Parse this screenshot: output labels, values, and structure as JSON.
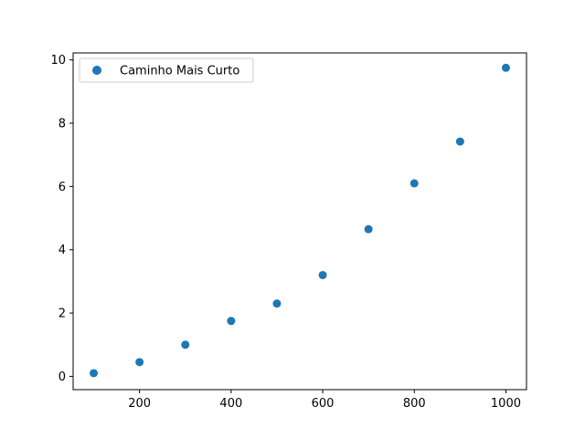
{
  "chart_data": {
    "type": "scatter",
    "title": "",
    "xlabel": "",
    "ylabel": "",
    "xlim": [
      55,
      1045
    ],
    "ylim": [
      -0.42,
      10.22
    ],
    "xticks": [
      200,
      400,
      600,
      800,
      1000
    ],
    "yticks": [
      0,
      2,
      4,
      6,
      8,
      10
    ],
    "grid": false,
    "legend_position": "top-left",
    "series": [
      {
        "name": "Caminho Mais Curto",
        "color": "#1f77b4",
        "marker": "circle",
        "x": [
          100,
          200,
          300,
          400,
          500,
          600,
          700,
          800,
          900,
          1000
        ],
        "y": [
          0.1,
          0.45,
          1.0,
          1.75,
          2.3,
          3.2,
          4.65,
          6.1,
          7.42,
          9.75
        ]
      }
    ]
  }
}
